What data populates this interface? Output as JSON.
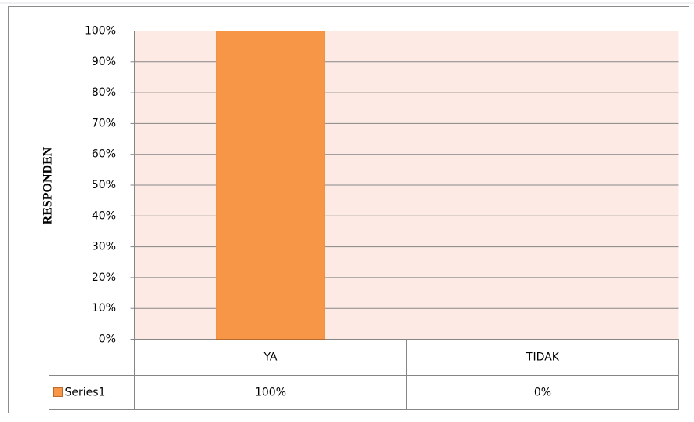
{
  "chart_data": {
    "type": "bar",
    "y_label": "RESPONDEN",
    "categories": [
      "YA",
      "TIDAK"
    ],
    "series": [
      {
        "name": "Series1",
        "color": "#f79646",
        "values": [
          100,
          0
        ],
        "value_labels": [
          "100%",
          "0%"
        ]
      }
    ],
    "ylim": [
      0,
      100
    ],
    "yticks": [
      {
        "value": 0,
        "label": "0%"
      },
      {
        "value": 10,
        "label": "10%"
      },
      {
        "value": 20,
        "label": "20%"
      },
      {
        "value": 30,
        "label": "30%"
      },
      {
        "value": 40,
        "label": "40%"
      },
      {
        "value": 50,
        "label": "50%"
      },
      {
        "value": 60,
        "label": "60%"
      },
      {
        "value": 70,
        "label": "70%"
      },
      {
        "value": 80,
        "label": "80%"
      },
      {
        "value": 90,
        "label": "90%"
      },
      {
        "value": 100,
        "label": "100%"
      }
    ],
    "grid": true
  }
}
